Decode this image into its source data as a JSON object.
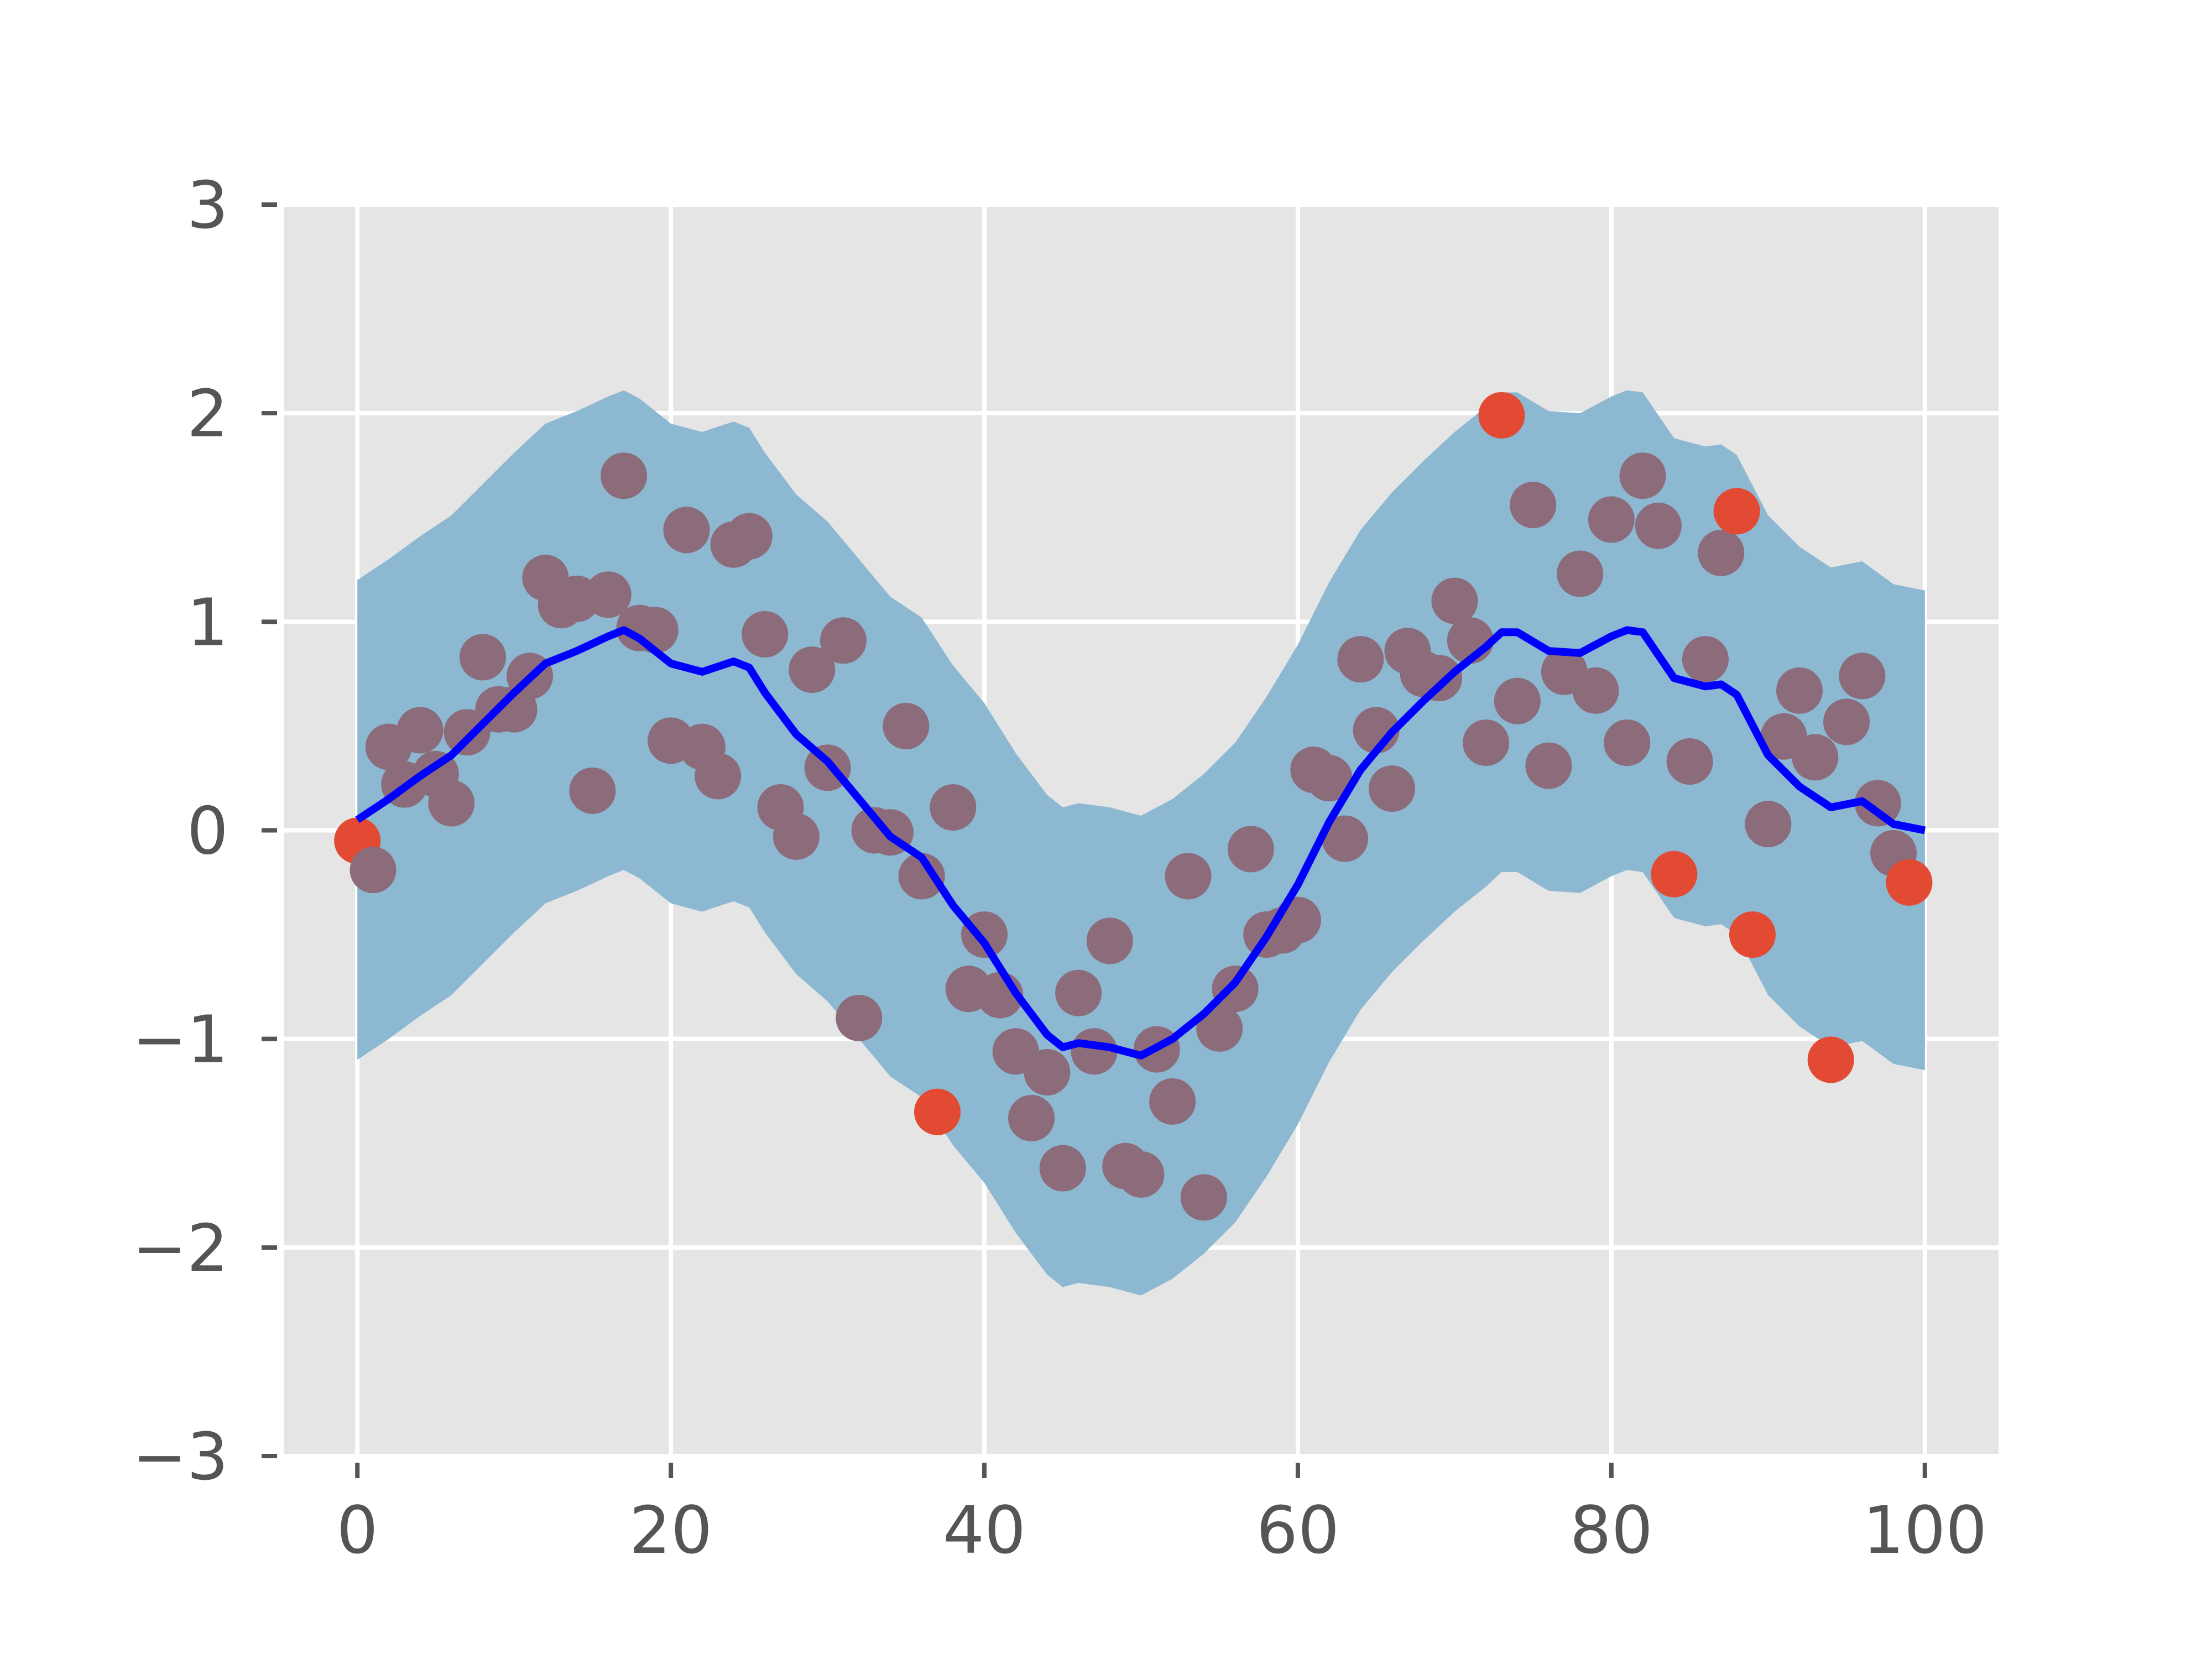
{
  "chart_data": {
    "type": "scatter",
    "title": "",
    "xlabel": "",
    "ylabel": "",
    "xlim": [
      -4.7,
      104.7
    ],
    "ylim": [
      -3,
      3
    ],
    "xticks": [
      0,
      20,
      40,
      60,
      80,
      100
    ],
    "xtick_labels": [
      "0",
      "20",
      "40",
      "60",
      "80",
      "100"
    ],
    "yticks": [
      -3,
      -2,
      -1,
      0,
      1,
      2,
      3
    ],
    "ytick_labels": [
      "−3",
      "−2",
      "−1",
      "0",
      "1",
      "2",
      "3"
    ],
    "grid": true,
    "legend": "none",
    "colors": {
      "background": "#e5e5e5",
      "grid": "#ffffff",
      "tick": "#555555",
      "band": "#8cb8d2",
      "mean_line": "#0000ff",
      "points_inside": "#8c6b7a",
      "points_outside": "#e24a33"
    },
    "scatter": {
      "x": [
        0,
        1,
        2,
        3,
        4,
        5,
        6,
        7,
        8,
        9,
        10,
        11,
        12,
        13,
        14,
        15,
        16,
        17,
        18,
        19,
        20,
        21,
        22,
        23,
        24,
        25,
        26,
        27,
        28,
        29,
        30,
        31,
        32,
        33,
        34,
        35,
        36,
        37,
        38,
        39,
        40,
        41,
        42,
        43,
        44,
        45,
        46,
        47,
        48,
        49,
        50,
        51,
        52,
        53,
        54,
        55,
        56,
        57,
        58,
        59,
        60,
        61,
        62,
        63,
        64,
        65,
        66,
        67,
        68,
        69,
        70,
        71,
        72,
        73,
        74,
        75,
        76,
        77,
        78,
        79,
        80,
        81,
        82,
        83,
        84,
        85,
        86,
        87,
        88,
        89,
        90,
        91,
        92,
        93,
        94,
        95,
        96,
        97,
        98,
        99
      ],
      "y": [
        -0.05,
        -0.19,
        0.4,
        0.22,
        0.48,
        0.27,
        0.13,
        0.47,
        0.83,
        0.58,
        0.58,
        0.74,
        1.21,
        1.08,
        1.11,
        0.19,
        1.13,
        1.7,
        0.97,
        0.96,
        0.43,
        1.44,
        0.4,
        0.26,
        1.37,
        1.41,
        0.94,
        0.11,
        -0.03,
        0.77,
        0.3,
        0.91,
        -0.9,
        0.0,
        -0.01,
        0.5,
        -0.22,
        -1.35,
        0.11,
        -0.76,
        -0.5,
        -0.79,
        -1.06,
        -1.38,
        -1.16,
        -1.62,
        -0.78,
        -1.06,
        -0.53,
        -1.61,
        -1.65,
        -1.05,
        -1.3,
        -0.22,
        -1.76,
        -0.95,
        -0.76,
        -0.09,
        -0.5,
        -0.48,
        -0.43,
        0.29,
        0.25,
        -0.04,
        0.82,
        0.48,
        0.2,
        0.86,
        0.75,
        0.73,
        1.1,
        0.91,
        0.42,
        1.99,
        0.62,
        1.56,
        0.31,
        0.76,
        1.23,
        0.67,
        1.49,
        0.42,
        1.7,
        1.46,
        -0.21,
        0.33,
        0.82,
        1.33,
        1.53,
        -0.5,
        0.03,
        0.45,
        0.67,
        0.35,
        -1.1,
        0.52,
        0.74,
        0.13,
        -0.11,
        -0.25
      ],
      "outside_band": [
        0,
        37,
        73,
        84,
        88,
        89,
        94,
        99
      ]
    },
    "mean_line": {
      "x": [
        0,
        2,
        4,
        6,
        8,
        10,
        12,
        14,
        16,
        17,
        18,
        20,
        22,
        24,
        25,
        26,
        28,
        30,
        32,
        34,
        36,
        38,
        40,
        42,
        44,
        45,
        46,
        48,
        50,
        52,
        54,
        56,
        58,
        60,
        62,
        64,
        66,
        68,
        70,
        72,
        73,
        74,
        76,
        78,
        80,
        81,
        82,
        84,
        86,
        87,
        88,
        90,
        92,
        94,
        96,
        98,
        100
      ],
      "y": [
        0.05,
        0.15,
        0.26,
        0.36,
        0.51,
        0.66,
        0.8,
        0.86,
        0.93,
        0.96,
        0.92,
        0.8,
        0.76,
        0.81,
        0.78,
        0.66,
        0.46,
        0.33,
        0.15,
        -0.03,
        -0.13,
        -0.36,
        -0.54,
        -0.78,
        -0.98,
        -1.04,
        -1.02,
        -1.04,
        -1.08,
        -1.0,
        -0.88,
        -0.73,
        -0.51,
        -0.26,
        0.04,
        0.29,
        0.47,
        0.62,
        0.76,
        0.88,
        0.95,
        0.95,
        0.86,
        0.85,
        0.93,
        0.96,
        0.95,
        0.73,
        0.69,
        0.7,
        0.65,
        0.36,
        0.21,
        0.11,
        0.14,
        0.03,
        0.0
      ]
    },
    "band_halfwidth": 1.15
  }
}
